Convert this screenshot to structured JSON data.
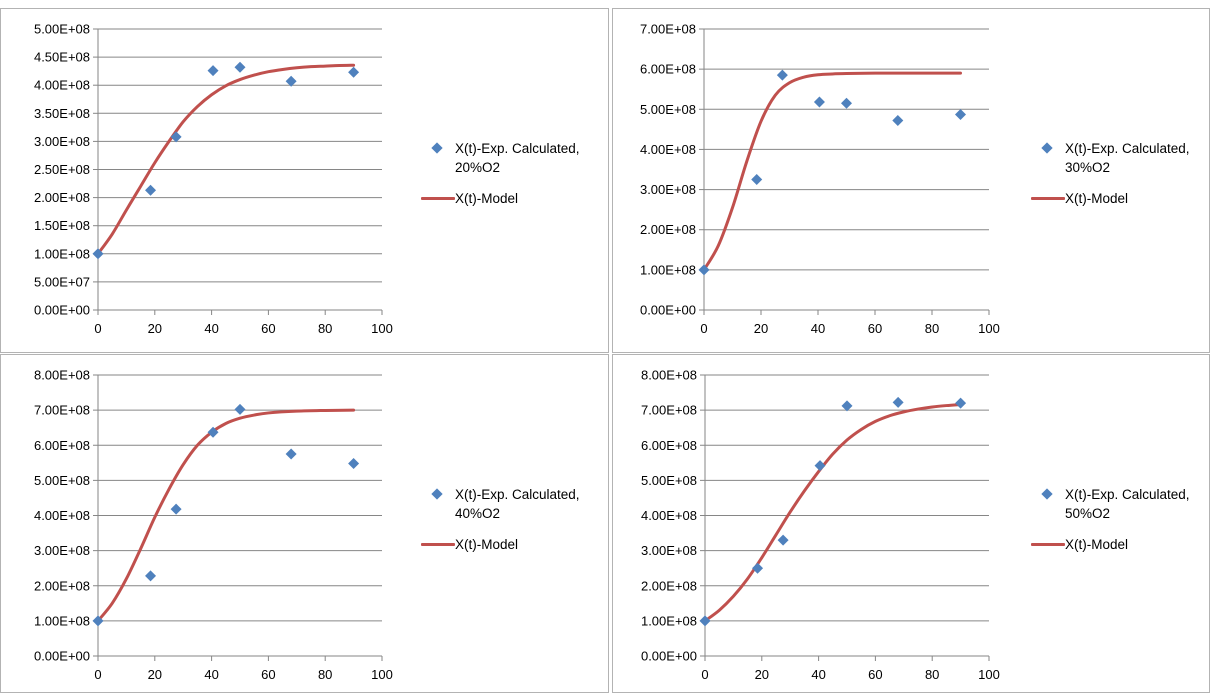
{
  "chart_data": [
    {
      "type": "scatter",
      "panel": "top-left",
      "xlim": [
        0,
        100
      ],
      "xticks": [
        "0",
        "20",
        "40",
        "60",
        "80",
        "100"
      ],
      "ylim": [
        0,
        500000000
      ],
      "ytick_step": 50000000,
      "yticks": [
        "0.00E+00",
        "5.00E+07",
        "1.00E+08",
        "1.50E+08",
        "2.00E+08",
        "2.50E+08",
        "3.00E+08",
        "3.50E+08",
        "4.00E+08",
        "4.50E+08",
        "5.00E+08"
      ],
      "grid": true,
      "legend_position": "right",
      "series": [
        {
          "name": "X(t)-Exp. Calculated, 20%O2",
          "kind": "markers",
          "color": "#4f81bd",
          "x": [
            0,
            18.5,
            27.5,
            40.5,
            50,
            68,
            90
          ],
          "y": [
            100000000,
            213000000,
            308000000,
            426000000,
            432000000,
            407000000,
            423000000
          ]
        },
        {
          "name": "X(t)-Model",
          "kind": "line",
          "color": "#c0504d",
          "x": [
            0,
            5,
            10,
            15,
            20,
            25,
            30,
            35,
            40,
            45,
            50,
            55,
            60,
            65,
            70,
            75,
            80,
            85,
            90
          ],
          "y": [
            100000000,
            135000000,
            178000000,
            220000000,
            262000000,
            300000000,
            335000000,
            362000000,
            383000000,
            399000000,
            410000000,
            418000000,
            424000000,
            428000000,
            431000000,
            433000000,
            434000000,
            435000000,
            435500000
          ]
        }
      ],
      "legend_text": [
        "X(t)-Exp. Calculated,",
        "20%O2",
        "X(t)-Model"
      ]
    },
    {
      "type": "scatter",
      "panel": "top-right",
      "xlim": [
        0,
        100
      ],
      "xticks": [
        "0",
        "20",
        "40",
        "60",
        "80",
        "100"
      ],
      "ylim": [
        0,
        700000000
      ],
      "ytick_step": 100000000,
      "yticks": [
        "0.00E+00",
        "1.00E+08",
        "2.00E+08",
        "3.00E+08",
        "4.00E+08",
        "5.00E+08",
        "6.00E+08",
        "7.00E+08"
      ],
      "grid": true,
      "legend_position": "right",
      "series": [
        {
          "name": "X(t)-Exp. Calculated, 30%O2",
          "kind": "markers",
          "color": "#4f81bd",
          "x": [
            0,
            18.5,
            27.5,
            40.5,
            50,
            68,
            90
          ],
          "y": [
            100000000,
            325000000,
            585000000,
            518000000,
            515000000,
            472000000,
            487000000
          ]
        },
        {
          "name": "X(t)-Model",
          "kind": "line",
          "color": "#c0504d",
          "x": [
            0,
            5,
            10,
            15,
            20,
            25,
            30,
            35,
            40,
            45,
            50,
            60,
            70,
            80,
            90
          ],
          "y": [
            100000000,
            160000000,
            255000000,
            370000000,
            470000000,
            535000000,
            566000000,
            580000000,
            586000000,
            588000000,
            589000000,
            590000000,
            590000000,
            590000000,
            590000000
          ]
        }
      ],
      "legend_text": [
        "X(t)-Exp. Calculated,",
        "30%O2",
        "X(t)-Model"
      ]
    },
    {
      "type": "scatter",
      "panel": "bottom-left",
      "xlim": [
        0,
        100
      ],
      "xticks": [
        "0",
        "20",
        "40",
        "60",
        "80",
        "100"
      ],
      "ylim": [
        0,
        800000000
      ],
      "ytick_step": 100000000,
      "yticks": [
        "0.00E+00",
        "1.00E+08",
        "2.00E+08",
        "3.00E+08",
        "4.00E+08",
        "5.00E+08",
        "6.00E+08",
        "7.00E+08",
        "8.00E+08"
      ],
      "grid": true,
      "legend_position": "right",
      "series": [
        {
          "name": "X(t)-Exp. Calculated, 40%O2",
          "kind": "markers",
          "color": "#4f81bd",
          "x": [
            0,
            18.5,
            27.5,
            40.5,
            50,
            68,
            90
          ],
          "y": [
            100000000,
            228000000,
            418000000,
            637000000,
            702000000,
            575000000,
            548000000
          ]
        },
        {
          "name": "X(t)-Model",
          "kind": "line",
          "color": "#c0504d",
          "x": [
            0,
            5,
            10,
            15,
            20,
            25,
            30,
            35,
            40,
            45,
            50,
            55,
            60,
            70,
            80,
            90
          ],
          "y": [
            100000000,
            150000000,
            220000000,
            305000000,
            395000000,
            475000000,
            545000000,
            600000000,
            637000000,
            662000000,
            677000000,
            686000000,
            692000000,
            697000000,
            699000000,
            700000000
          ]
        }
      ],
      "legend_text": [
        "X(t)-Exp. Calculated,",
        "40%O2",
        "X(t)-Model"
      ]
    },
    {
      "type": "scatter",
      "panel": "bottom-right",
      "xlim": [
        0,
        100
      ],
      "xticks": [
        "0",
        "20",
        "40",
        "60",
        "80",
        "100"
      ],
      "ylim": [
        0,
        800000000
      ],
      "ytick_step": 100000000,
      "yticks": [
        "0.00E+00",
        "1.00E+08",
        "2.00E+08",
        "3.00E+08",
        "4.00E+08",
        "5.00E+08",
        "6.00E+08",
        "7.00E+08",
        "8.00E+08"
      ],
      "grid": true,
      "legend_position": "right",
      "series": [
        {
          "name": "X(t)-Exp. Calculated, 50%O2",
          "kind": "markers",
          "color": "#4f81bd",
          "x": [
            0,
            18.5,
            27.5,
            40.5,
            50,
            68,
            90
          ],
          "y": [
            100000000,
            250000000,
            330000000,
            542000000,
            712000000,
            722000000,
            720000000
          ]
        },
        {
          "name": "X(t)-Model",
          "kind": "line",
          "color": "#c0504d",
          "x": [
            0,
            5,
            10,
            15,
            20,
            25,
            30,
            35,
            40,
            45,
            50,
            55,
            60,
            65,
            70,
            75,
            80,
            85,
            90
          ],
          "y": [
            100000000,
            130000000,
            170000000,
            220000000,
            280000000,
            345000000,
            410000000,
            470000000,
            525000000,
            575000000,
            615000000,
            645000000,
            668000000,
            684000000,
            695000000,
            703000000,
            709000000,
            713000000,
            716000000
          ]
        }
      ],
      "legend_text": [
        "X(t)-Exp. Calculated,",
        "50%O2",
        "X(t)-Model"
      ]
    }
  ]
}
